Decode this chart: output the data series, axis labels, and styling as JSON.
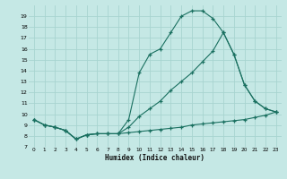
{
  "xlabel": "Humidex (Indice chaleur)",
  "background_color": "#c5e8e5",
  "grid_color": "#a8d4d0",
  "line_color": "#1a7060",
  "xlim": [
    -0.5,
    23.5
  ],
  "ylim": [
    7,
    20
  ],
  "yticks": [
    7,
    8,
    9,
    10,
    11,
    12,
    13,
    14,
    15,
    16,
    17,
    18,
    19
  ],
  "xticks": [
    0,
    1,
    2,
    3,
    4,
    5,
    6,
    7,
    8,
    9,
    10,
    11,
    12,
    13,
    14,
    15,
    16,
    17,
    18,
    19,
    20,
    21,
    22,
    23
  ],
  "curve_top_x": [
    0,
    1,
    2,
    3,
    4,
    5,
    6,
    7,
    8,
    9,
    10,
    11,
    12,
    13,
    14,
    15,
    16,
    17,
    18,
    19,
    20,
    21,
    22,
    23
  ],
  "curve_top_y": [
    9.5,
    9.0,
    8.8,
    8.5,
    7.7,
    8.1,
    8.2,
    8.2,
    8.2,
    9.5,
    13.8,
    15.5,
    16.0,
    17.5,
    19.0,
    19.5,
    19.5,
    18.8,
    17.5,
    15.5,
    12.7,
    11.2,
    10.5,
    10.2
  ],
  "curve_mid_x": [
    0,
    1,
    2,
    3,
    4,
    5,
    6,
    7,
    8,
    9,
    10,
    11,
    12,
    13,
    14,
    15,
    16,
    17,
    18,
    19,
    20,
    21,
    22,
    23
  ],
  "curve_mid_y": [
    9.5,
    9.0,
    8.8,
    8.5,
    7.7,
    8.1,
    8.2,
    8.2,
    8.2,
    8.8,
    9.8,
    10.5,
    11.2,
    12.2,
    13.0,
    13.8,
    14.8,
    15.8,
    17.5,
    15.5,
    12.7,
    11.2,
    10.5,
    10.2
  ],
  "curve_bot_x": [
    0,
    1,
    2,
    3,
    4,
    5,
    6,
    7,
    8,
    9,
    10,
    11,
    12,
    13,
    14,
    15,
    16,
    17,
    18,
    19,
    20,
    21,
    22,
    23
  ],
  "curve_bot_y": [
    9.5,
    9.0,
    8.8,
    8.5,
    7.7,
    8.1,
    8.2,
    8.2,
    8.2,
    8.3,
    8.4,
    8.5,
    8.6,
    8.7,
    8.8,
    9.0,
    9.1,
    9.2,
    9.3,
    9.4,
    9.5,
    9.7,
    9.9,
    10.2
  ]
}
